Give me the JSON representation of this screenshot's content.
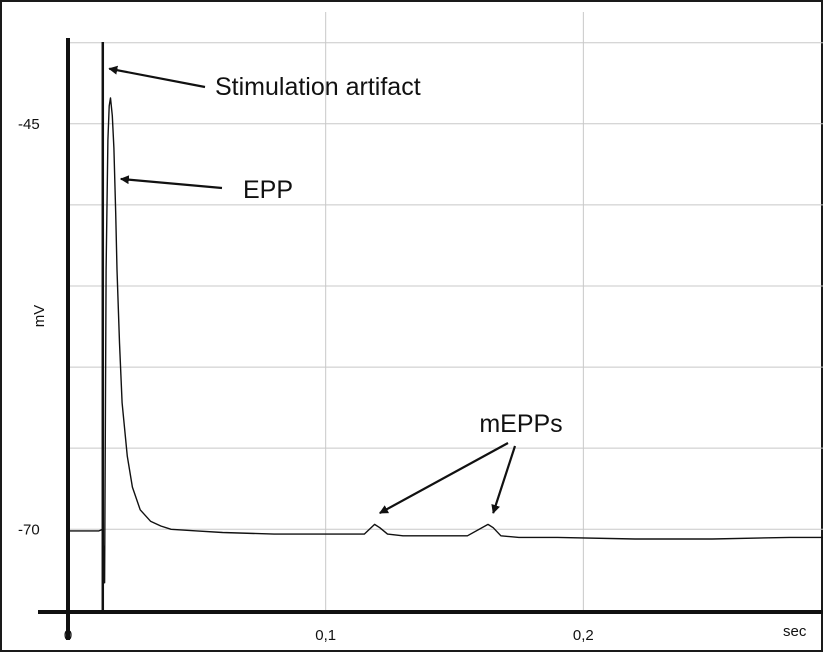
{
  "chart_data": {
    "type": "line",
    "xlabel": "sec",
    "ylabel": "mV",
    "x_ticks": [
      {
        "value": 0,
        "label": "0"
      },
      {
        "value": 0.1,
        "label": "0,1"
      },
      {
        "value": 0.2,
        "label": "0,2"
      }
    ],
    "y_ticks": [
      {
        "value": -45,
        "label": "-45"
      },
      {
        "value": -70,
        "label": "-70"
      }
    ],
    "xlim": [
      0,
      0.293
    ],
    "ylim": [
      -75.1,
      -38.6
    ],
    "grid": true,
    "series": [
      {
        "x": [
          0,
          0.012,
          0.0135,
          0.0142,
          0.0148,
          0.0155,
          0.016,
          0.0165,
          0.0172,
          0.0178,
          0.0185,
          0.019,
          0.02,
          0.021,
          0.023,
          0.025,
          0.028,
          0.032,
          0.036,
          0.04,
          0.05,
          0.06,
          0.08,
          0.1,
          0.115,
          0.119,
          0.121,
          0.124,
          0.13,
          0.14,
          0.155,
          0.163,
          0.165,
          0.168,
          0.175,
          0.19,
          0.22,
          0.25,
          0.28,
          0.293
        ],
        "y": [
          -70.1,
          -70.1,
          -70.0,
          -73.3,
          -54.0,
          -46.0,
          -43.9,
          -43.4,
          -44.5,
          -46.5,
          -50.5,
          -54.0,
          -58.5,
          -62.2,
          -65.5,
          -67.4,
          -68.8,
          -69.5,
          -69.8,
          -70.0,
          -70.1,
          -70.2,
          -70.3,
          -70.3,
          -70.3,
          -69.7,
          -69.9,
          -70.3,
          -70.4,
          -70.4,
          -70.4,
          -69.7,
          -69.9,
          -70.4,
          -70.5,
          -70.5,
          -70.6,
          -70.6,
          -70.5,
          -70.5
        ]
      }
    ],
    "stimulus_x": 0.0135,
    "annotations": [
      {
        "text": "Stimulation artifact",
        "points_to": [
          {
            "x": 0.016,
            "y": -41.6
          }
        ]
      },
      {
        "text": "EPP",
        "points_to": [
          {
            "x": 0.0205,
            "y": -48.4
          }
        ]
      },
      {
        "text": "mEPPs",
        "points_to": [
          {
            "x": 0.121,
            "y": -69.0
          },
          {
            "x": 0.165,
            "y": -69.0
          }
        ]
      }
    ]
  }
}
